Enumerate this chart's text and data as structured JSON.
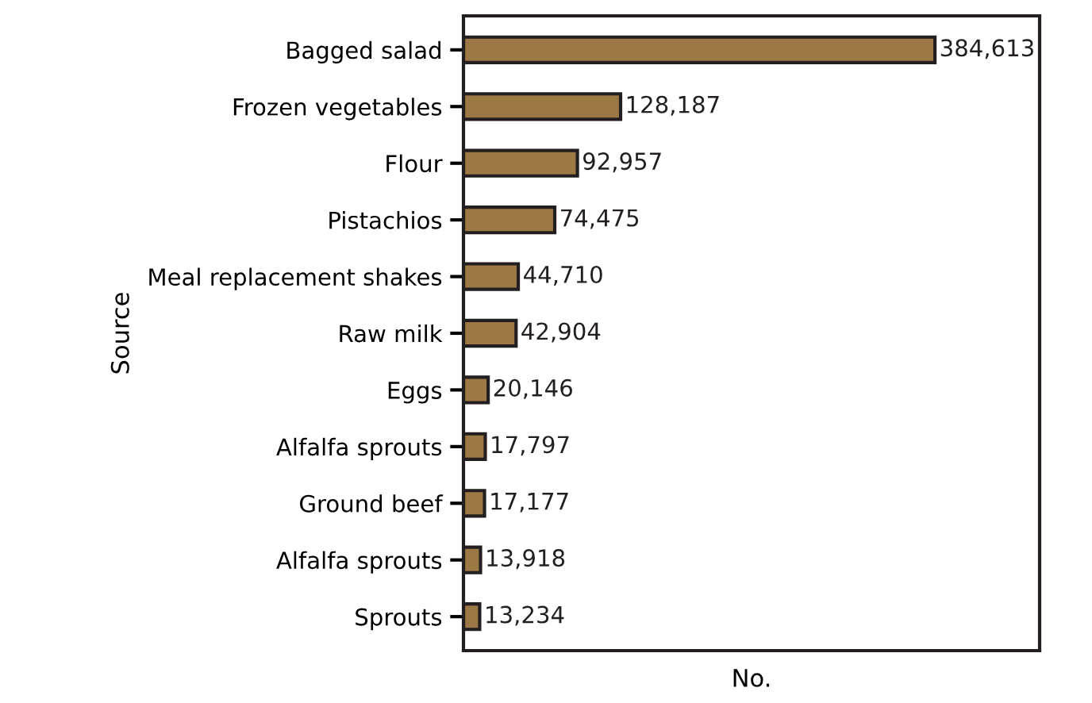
{
  "chart_data": {
    "type": "bar",
    "orientation": "horizontal",
    "xlabel": "No.",
    "ylabel": "Source",
    "categories": [
      "Bagged salad",
      "Frozen vegetables",
      "Flour",
      "Pistachios",
      "Meal replacement shakes",
      "Raw milk",
      "Eggs",
      "Alfalfa sprouts",
      "Ground beef",
      "Alfalfa sprouts",
      "Sprouts"
    ],
    "values": [
      384613,
      128187,
      92957,
      74475,
      44710,
      42904,
      20146,
      17797,
      17177,
      13918,
      13234
    ],
    "value_labels": [
      "384,613",
      "128,187",
      "92,957",
      "74,475",
      "44,710",
      "42,904",
      "20,146",
      "17,797",
      "17,177",
      "13,918",
      "13,234"
    ],
    "color": "#9c7844",
    "xlim": [
      0,
      470000
    ],
    "tick_labels": "y",
    "grid": false,
    "legend": false
  }
}
